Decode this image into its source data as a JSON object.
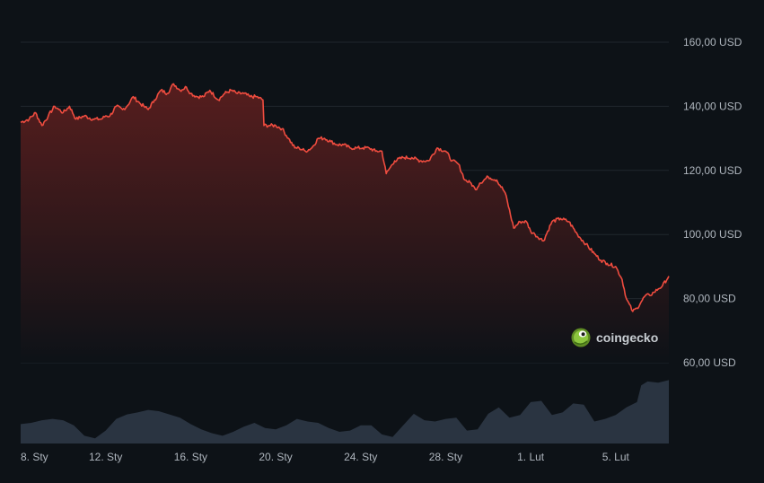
{
  "watermark": {
    "text": "coingecko",
    "icon": "gecko-logo-icon"
  },
  "colors": {
    "background": "#0d1217",
    "grid": "#20272e",
    "price_line": "#ef4c3f",
    "area_top": "#5a1e1e",
    "area_bottom": "#0d1217",
    "volume": "#2a3441",
    "axis_text": "#aeb5bd",
    "watermark_text": "#c8cdd2"
  },
  "chart_data": {
    "type": "area",
    "y_ticks": [
      "160,00 USD",
      "140,00 USD",
      "120,00 USD",
      "100,00 USD",
      "80,00 USD",
      "60,00 USD"
    ],
    "ylim": [
      60,
      160
    ],
    "x_ticks": [
      "8. Sty",
      "12. Sty",
      "16. Sty",
      "20. Sty",
      "24. Sty",
      "28. Sty",
      "1. Lut",
      "5. Lut"
    ],
    "x_tick_days": [
      0,
      4,
      8,
      12,
      16,
      20,
      24,
      28
    ],
    "xlim_days": [
      0,
      30.5
    ],
    "grid": true,
    "series": [
      {
        "type": "area",
        "x_days": [
          0,
          0.4,
          0.7,
          1.0,
          1.3,
          1.6,
          1.8,
          2.0,
          2.3,
          2.6,
          3.0,
          3.4,
          3.8,
          4.0,
          4.2,
          4.5,
          4.8,
          5.0,
          5.3,
          5.6,
          5.8,
          6.0,
          6.3,
          6.6,
          6.9,
          7.2,
          7.5,
          7.8,
          8.0,
          8.3,
          8.6,
          8.9,
          9.3,
          9.6,
          9.9,
          10.2,
          10.5,
          10.8,
          11.1,
          11.4,
          11.45,
          11.7,
          12.0,
          12.3,
          12.6,
          12.9,
          13.1,
          13.4,
          13.7,
          14.0,
          14.3,
          14.6,
          14.9,
          15.2,
          15.5,
          15.8,
          16.1,
          16.4,
          16.7,
          17.0,
          17.2,
          17.4,
          17.6,
          18.0,
          18.4,
          18.8,
          19.2,
          19.6,
          20.0,
          20.3,
          20.6,
          20.9,
          21.2,
          21.4,
          21.6,
          22.0,
          22.4,
          22.8,
          23.2,
          23.5,
          23.8,
          24.0,
          24.2,
          24.6,
          25.0,
          25.4,
          25.8,
          26.2,
          26.6,
          27.0,
          27.3,
          27.6,
          28.0,
          28.3,
          28.5,
          28.8,
          29.0,
          29.2,
          29.4,
          29.6,
          29.8,
          30.0,
          30.2,
          30.5
        ],
        "values": [
          135,
          136,
          138,
          134,
          137,
          140,
          139,
          138,
          140,
          136,
          137,
          136,
          136,
          137,
          137,
          140,
          139,
          140,
          143,
          141,
          140,
          139,
          142,
          145,
          144,
          147,
          145,
          146,
          144,
          143,
          143,
          145,
          142,
          144,
          145,
          144,
          144,
          143,
          143,
          142,
          134,
          134,
          134,
          133,
          130,
          127,
          127,
          126,
          127,
          130,
          130,
          129,
          128,
          128,
          127,
          127,
          127,
          127,
          126,
          126,
          119,
          121,
          123,
          124,
          124,
          123,
          123,
          127,
          126,
          123,
          122,
          117,
          116,
          114,
          116,
          118,
          117,
          113,
          102,
          104,
          104,
          101,
          100,
          98,
          104,
          105,
          104,
          100,
          97,
          94,
          92,
          91,
          90,
          86,
          80,
          76,
          77,
          79,
          81,
          81,
          82,
          83,
          84,
          87
        ]
      },
      {
        "type": "volume",
        "x_days": [
          0,
          0.5,
          1.0,
          1.5,
          2.0,
          2.5,
          3.0,
          3.5,
          4.0,
          4.5,
          5.0,
          5.5,
          6.0,
          6.5,
          7.0,
          7.5,
          8.0,
          8.5,
          9.0,
          9.5,
          10.0,
          10.5,
          11.0,
          11.5,
          12.0,
          12.5,
          13.0,
          13.5,
          14.0,
          14.5,
          15.0,
          15.5,
          16.0,
          16.5,
          17.0,
          17.5,
          18.0,
          18.5,
          19.0,
          19.5,
          20.0,
          20.5,
          21.0,
          21.5,
          22.0,
          22.5,
          23.0,
          23.5,
          24.0,
          24.5,
          25.0,
          25.5,
          26.0,
          26.5,
          27.0,
          27.5,
          28.0,
          28.5,
          29.0,
          29.2,
          29.5,
          30.0,
          30.5
        ],
        "values": [
          0.3,
          0.32,
          0.36,
          0.38,
          0.36,
          0.28,
          0.12,
          0.08,
          0.2,
          0.38,
          0.45,
          0.48,
          0.52,
          0.5,
          0.45,
          0.4,
          0.3,
          0.22,
          0.16,
          0.12,
          0.18,
          0.26,
          0.32,
          0.24,
          0.22,
          0.28,
          0.38,
          0.34,
          0.32,
          0.24,
          0.18,
          0.2,
          0.28,
          0.28,
          0.14,
          0.1,
          0.28,
          0.46,
          0.36,
          0.34,
          0.38,
          0.4,
          0.2,
          0.22,
          0.46,
          0.56,
          0.4,
          0.44,
          0.64,
          0.66,
          0.44,
          0.48,
          0.62,
          0.6,
          0.34,
          0.38,
          0.44,
          0.56,
          0.64,
          0.9,
          0.96,
          0.94,
          0.98
        ]
      }
    ]
  }
}
